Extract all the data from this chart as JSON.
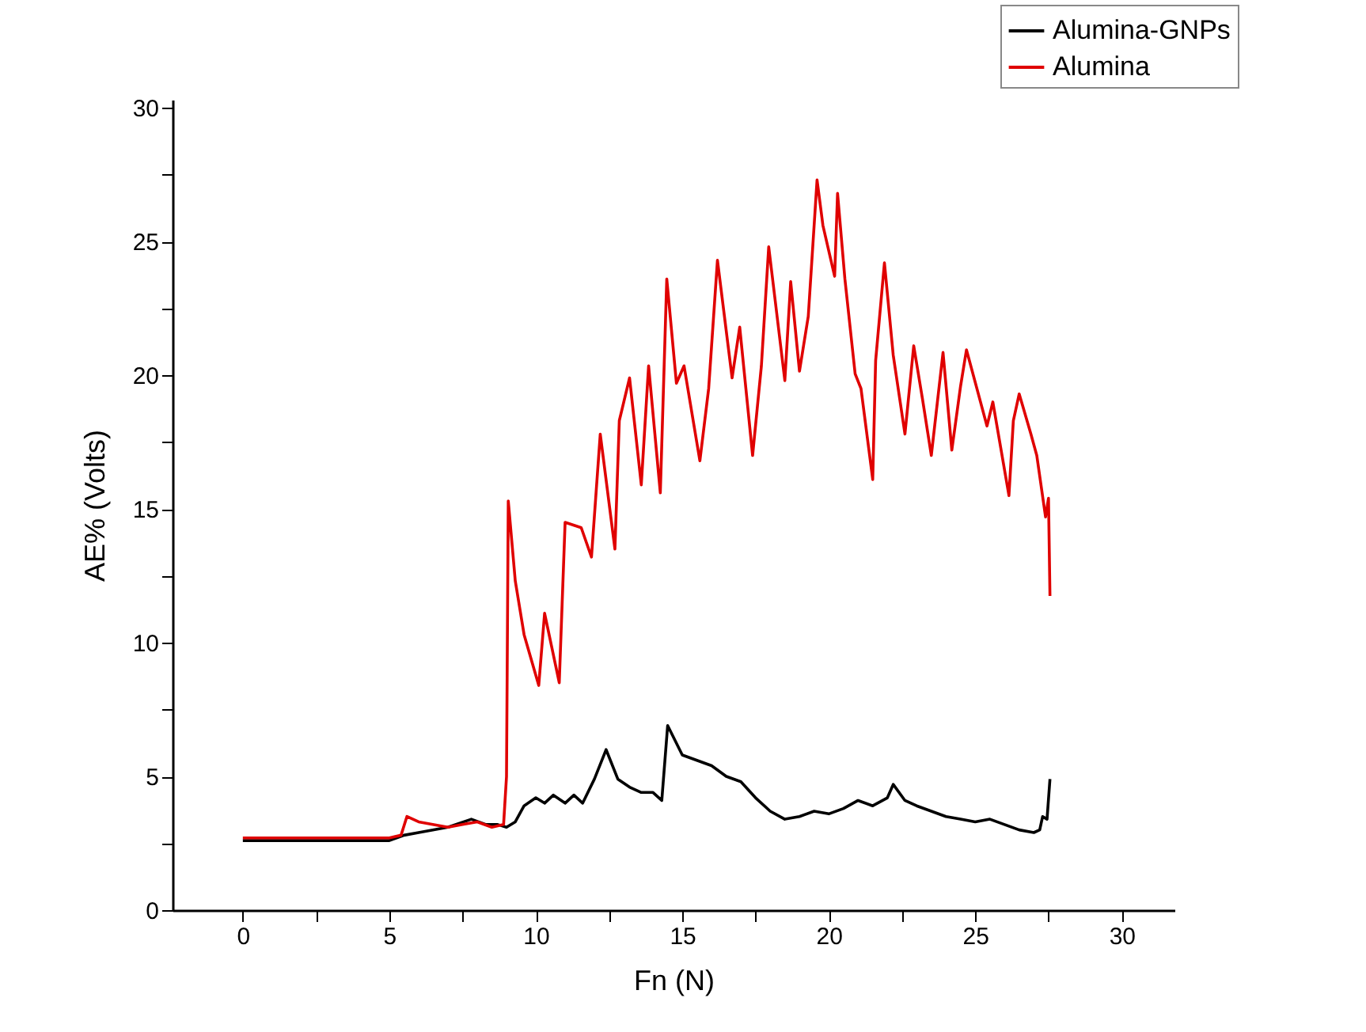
{
  "chart_data": {
    "type": "line",
    "xlabel": "Fn (N)",
    "ylabel": "AE% (Volts)",
    "xlim": [
      -2.4,
      31.8
    ],
    "ylim": [
      0,
      30.3
    ],
    "xticks": [
      0,
      {
        "value": 2.5,
        "label": null
      },
      5,
      {
        "value": 7.5,
        "label": null
      },
      10,
      {
        "value": 12.5,
        "label": null
      },
      15,
      {
        "value": 17.5,
        "label": null
      },
      20,
      {
        "value": 22.5,
        "label": null
      },
      25,
      {
        "value": 27.5,
        "label": null
      },
      30
    ],
    "yticks": [
      0,
      {
        "value": 2.5,
        "label": null
      },
      5,
      {
        "value": 7.5,
        "label": null
      },
      10,
      {
        "value": 12.5,
        "label": null
      },
      15,
      {
        "value": 17.5,
        "label": null
      },
      20,
      {
        "value": 22.5,
        "label": null
      },
      25,
      {
        "value": 27.5,
        "label": null
      },
      30
    ],
    "grid": false,
    "legend": "top right",
    "line_style": "solid",
    "marker": "none",
    "series": [
      {
        "name": "Alumina-GNPs",
        "color": "#000000",
        "x": [
          0,
          2,
          5,
          5.5,
          6,
          7,
          7.8,
          8.3,
          8.7,
          9,
          9.3,
          9.6,
          10,
          10.3,
          10.6,
          11,
          11.3,
          11.6,
          12,
          12.4,
          12.8,
          13.2,
          13.6,
          14,
          14.3,
          14.5,
          15,
          15.5,
          16,
          16.5,
          17,
          17.5,
          18,
          18.5,
          19,
          19.5,
          20,
          20.5,
          21,
          21.5,
          22,
          22.2,
          22.6,
          23,
          23.5,
          24,
          24.5,
          25,
          25.5,
          26,
          26.5,
          27,
          27.2,
          27.3,
          27.45,
          27.55
        ],
        "values": [
          2.6,
          2.6,
          2.6,
          2.8,
          2.9,
          3.1,
          3.4,
          3.2,
          3.2,
          3.1,
          3.3,
          3.9,
          4.2,
          4.0,
          4.3,
          4.0,
          4.3,
          4.0,
          4.9,
          6.0,
          4.9,
          4.6,
          4.4,
          4.4,
          4.1,
          6.9,
          5.8,
          5.6,
          5.4,
          5.0,
          4.8,
          4.2,
          3.7,
          3.4,
          3.5,
          3.7,
          3.6,
          3.8,
          4.1,
          3.9,
          4.2,
          4.7,
          4.1,
          3.9,
          3.7,
          3.5,
          3.4,
          3.3,
          3.4,
          3.2,
          3.0,
          2.9,
          3.0,
          3.5,
          3.4,
          4.9
        ]
      },
      {
        "name": "Alumina",
        "color": "#e00000",
        "x": [
          0,
          2,
          5,
          5.4,
          5.6,
          6,
          7,
          7.5,
          8,
          8.5,
          8.9,
          9.0,
          9.06,
          9.3,
          9.6,
          10.1,
          10.3,
          10.8,
          11.0,
          11.55,
          11.9,
          12.2,
          12.7,
          12.85,
          13.2,
          13.6,
          13.85,
          14.25,
          14.47,
          14.8,
          15.06,
          15.6,
          15.9,
          16.2,
          16.7,
          16.96,
          17.4,
          17.7,
          17.95,
          18.5,
          18.7,
          19.0,
          19.3,
          19.6,
          19.8,
          20.2,
          20.3,
          20.55,
          20.9,
          21.1,
          21.5,
          21.6,
          21.9,
          22.2,
          22.6,
          22.9,
          23.2,
          23.5,
          23.9,
          24.2,
          24.5,
          24.7,
          25.4,
          25.6,
          26.15,
          26.3,
          26.5,
          26.9,
          27.1,
          27.4,
          27.5,
          27.55
        ],
        "values": [
          2.7,
          2.7,
          2.7,
          2.8,
          3.5,
          3.3,
          3.1,
          3.2,
          3.3,
          3.1,
          3.2,
          5.0,
          15.3,
          12.3,
          10.3,
          8.4,
          11.1,
          8.5,
          14.5,
          14.3,
          13.2,
          17.8,
          13.5,
          18.3,
          19.9,
          15.9,
          20.35,
          15.6,
          23.6,
          19.7,
          20.35,
          16.8,
          19.5,
          24.3,
          19.9,
          21.8,
          17.0,
          20.35,
          24.8,
          19.8,
          23.5,
          20.15,
          22.2,
          27.3,
          25.6,
          23.7,
          26.8,
          23.6,
          20.05,
          19.5,
          16.1,
          20.55,
          24.2,
          20.75,
          17.8,
          21.1,
          19.1,
          17.0,
          20.85,
          17.2,
          19.6,
          20.95,
          18.1,
          19.0,
          15.5,
          18.3,
          19.3,
          17.8,
          17.0,
          14.7,
          15.4,
          11.75
        ]
      }
    ]
  }
}
